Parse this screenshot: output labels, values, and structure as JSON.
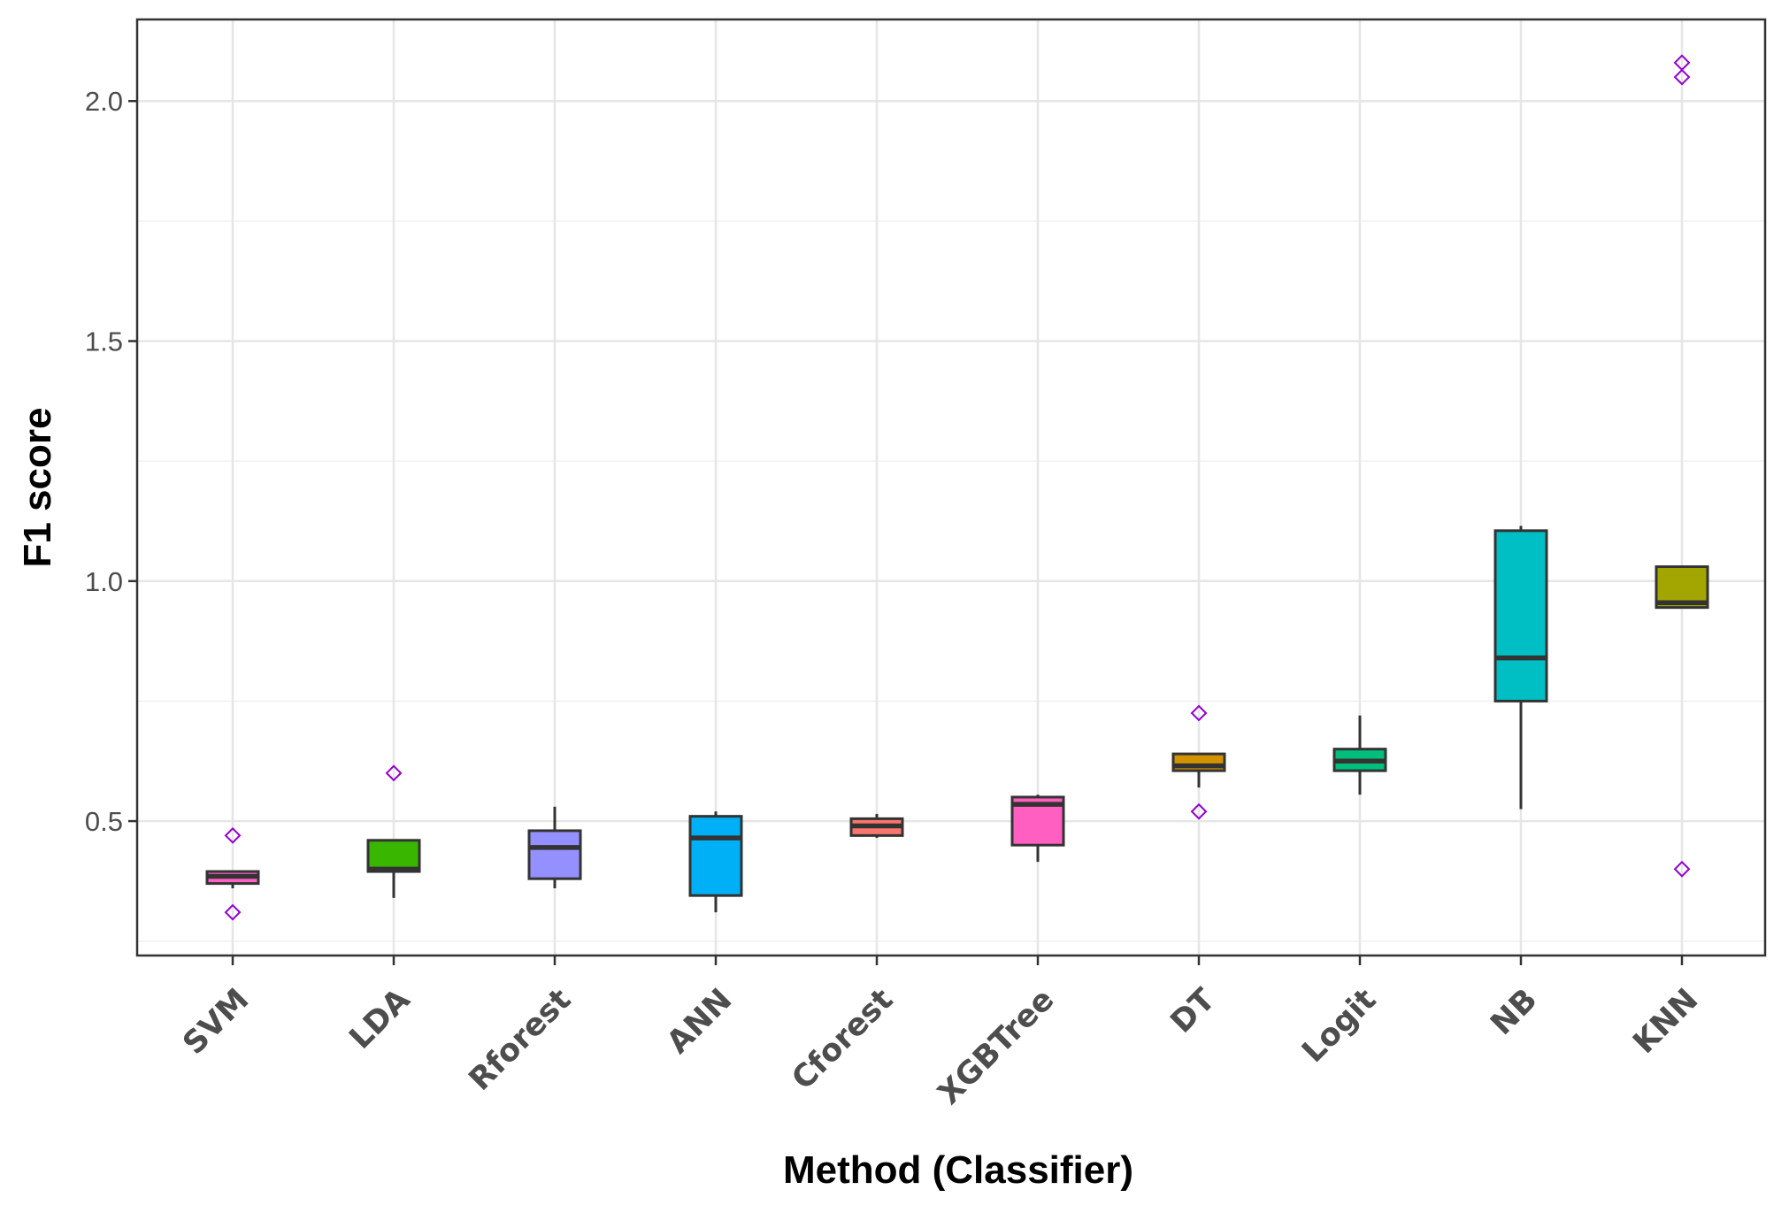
{
  "chart_data": {
    "type": "box",
    "title": "",
    "xlabel": "Method (Classifier)",
    "ylabel": "F1 score",
    "ylim": [
      0.22,
      2.17
    ],
    "yticks": [
      0.5,
      1.0,
      1.5,
      2.0
    ],
    "ytick_labels": [
      "0.5",
      "1.0",
      "1.5",
      "2.0"
    ],
    "grid": true,
    "legend": "none",
    "categories": [
      "SVM",
      "LDA",
      "Rforest",
      "ANN",
      "Cforest",
      "XGBTree",
      "DT",
      "Logit",
      "NB",
      "KNN"
    ],
    "boxes": [
      {
        "name": "SVM",
        "min": 0.36,
        "q1": 0.37,
        "median": 0.385,
        "q3": 0.395,
        "max": 0.395,
        "outliers": [
          0.47,
          0.31
        ],
        "color": "#FF61C3"
      },
      {
        "name": "LDA",
        "min": 0.34,
        "q1": 0.395,
        "median": 0.4,
        "q3": 0.46,
        "max": 0.46,
        "outliers": [
          0.6
        ],
        "color": "#39B600"
      },
      {
        "name": "Rforest",
        "min": 0.36,
        "q1": 0.38,
        "median": 0.445,
        "q3": 0.48,
        "max": 0.53,
        "outliers": [],
        "color": "#9590FF"
      },
      {
        "name": "ANN",
        "min": 0.31,
        "q1": 0.345,
        "median": 0.465,
        "q3": 0.51,
        "max": 0.52,
        "outliers": [],
        "color": "#00B0F6"
      },
      {
        "name": "Cforest",
        "min": 0.465,
        "q1": 0.47,
        "median": 0.49,
        "q3": 0.505,
        "max": 0.515,
        "outliers": [],
        "color": "#F8766D"
      },
      {
        "name": "XGBTree",
        "min": 0.415,
        "q1": 0.45,
        "median": 0.535,
        "q3": 0.55,
        "max": 0.555,
        "outliers": [],
        "color": "#FF5FC0"
      },
      {
        "name": "DT",
        "min": 0.57,
        "q1": 0.605,
        "median": 0.615,
        "q3": 0.64,
        "max": 0.64,
        "outliers": [
          0.725,
          0.52
        ],
        "color": "#D39200"
      },
      {
        "name": "Logit",
        "min": 0.555,
        "q1": 0.605,
        "median": 0.625,
        "q3": 0.65,
        "max": 0.72,
        "outliers": [],
        "color": "#00BF7D"
      },
      {
        "name": "NB",
        "min": 0.525,
        "q1": 0.75,
        "median": 0.84,
        "q3": 1.105,
        "max": 1.115,
        "outliers": [],
        "color": "#00BFC4"
      },
      {
        "name": "KNN",
        "min": 0.945,
        "q1": 0.945,
        "median": 0.955,
        "q3": 1.03,
        "max": 1.03,
        "outliers": [
          2.08,
          2.05,
          0.4
        ],
        "color": "#A3A500"
      }
    ],
    "outlier_color": "#9400D3"
  }
}
